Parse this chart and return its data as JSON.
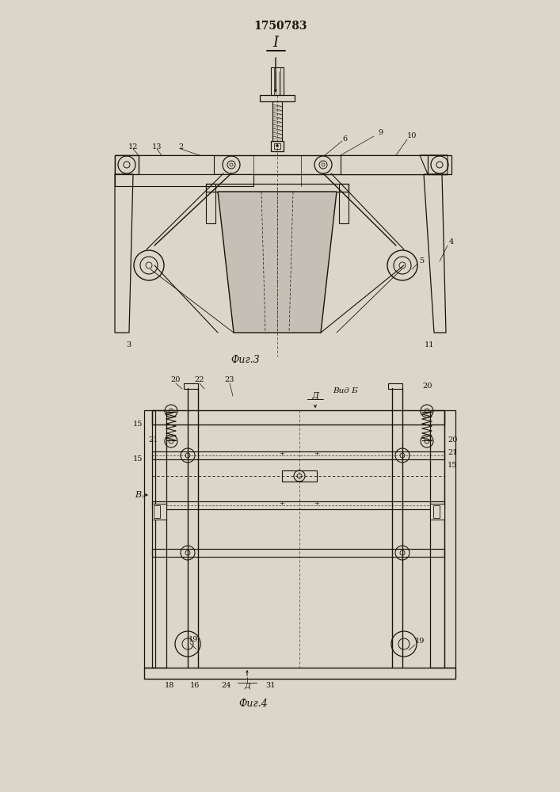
{
  "title": "1750783",
  "bg": "#dbd6ca",
  "lc": "#1a1408",
  "fig3_caption": "Фиг.3",
  "fig4_caption": "Фиг.4",
  "roman_one": "I",
  "view_b": "Вид Б",
  "D_label": "Д",
  "B_label": "В",
  "fig3_nums": [
    "12",
    "13",
    "2",
    "9",
    "6",
    "10",
    "3",
    "11",
    "5",
    "4"
  ],
  "fig4_nums": [
    "20",
    "22",
    "23",
    "21",
    "15",
    "15",
    "19",
    "19",
    "18",
    "16",
    "24",
    "31",
    "20"
  ]
}
